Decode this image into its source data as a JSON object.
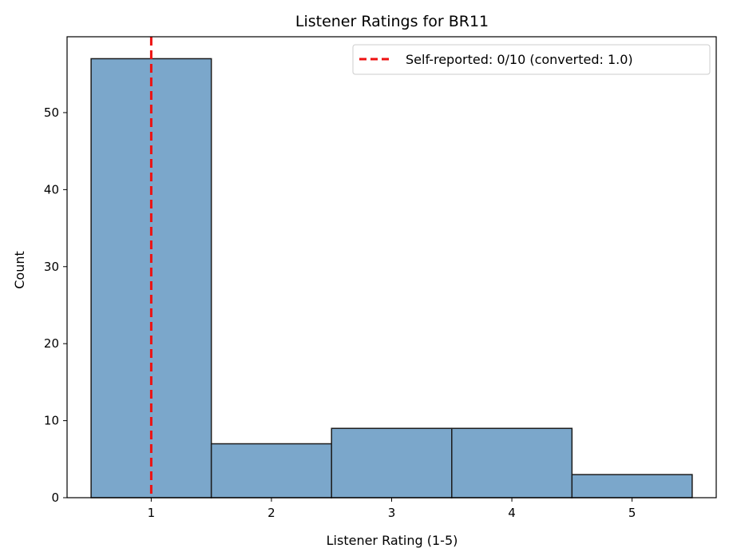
{
  "chart_data": {
    "type": "bar",
    "title": "Listener Ratings for BR11",
    "xlabel": "Listener Rating (1-5)",
    "ylabel": "Count",
    "categories": [
      1,
      2,
      3,
      4,
      5
    ],
    "values": [
      57,
      7,
      9,
      9,
      3
    ],
    "bar_color": "#7ba7cb",
    "bar_edge_color": "#1c1c1c",
    "xlim": [
      0.3,
      5.7
    ],
    "ylim": [
      0,
      59.85
    ],
    "yticks": [
      0,
      10,
      20,
      30,
      40,
      50
    ],
    "xticks": [
      1,
      2,
      3,
      4,
      5
    ],
    "grid": false,
    "reference_line": {
      "x": 1.0,
      "color": "#ee1111",
      "style": "dashed",
      "label": "Self-reported: 0/10 (converted: 1.0)"
    },
    "legend": {
      "position": "top-right",
      "entries": [
        "Self-reported: 0/10 (converted: 1.0)"
      ]
    }
  }
}
